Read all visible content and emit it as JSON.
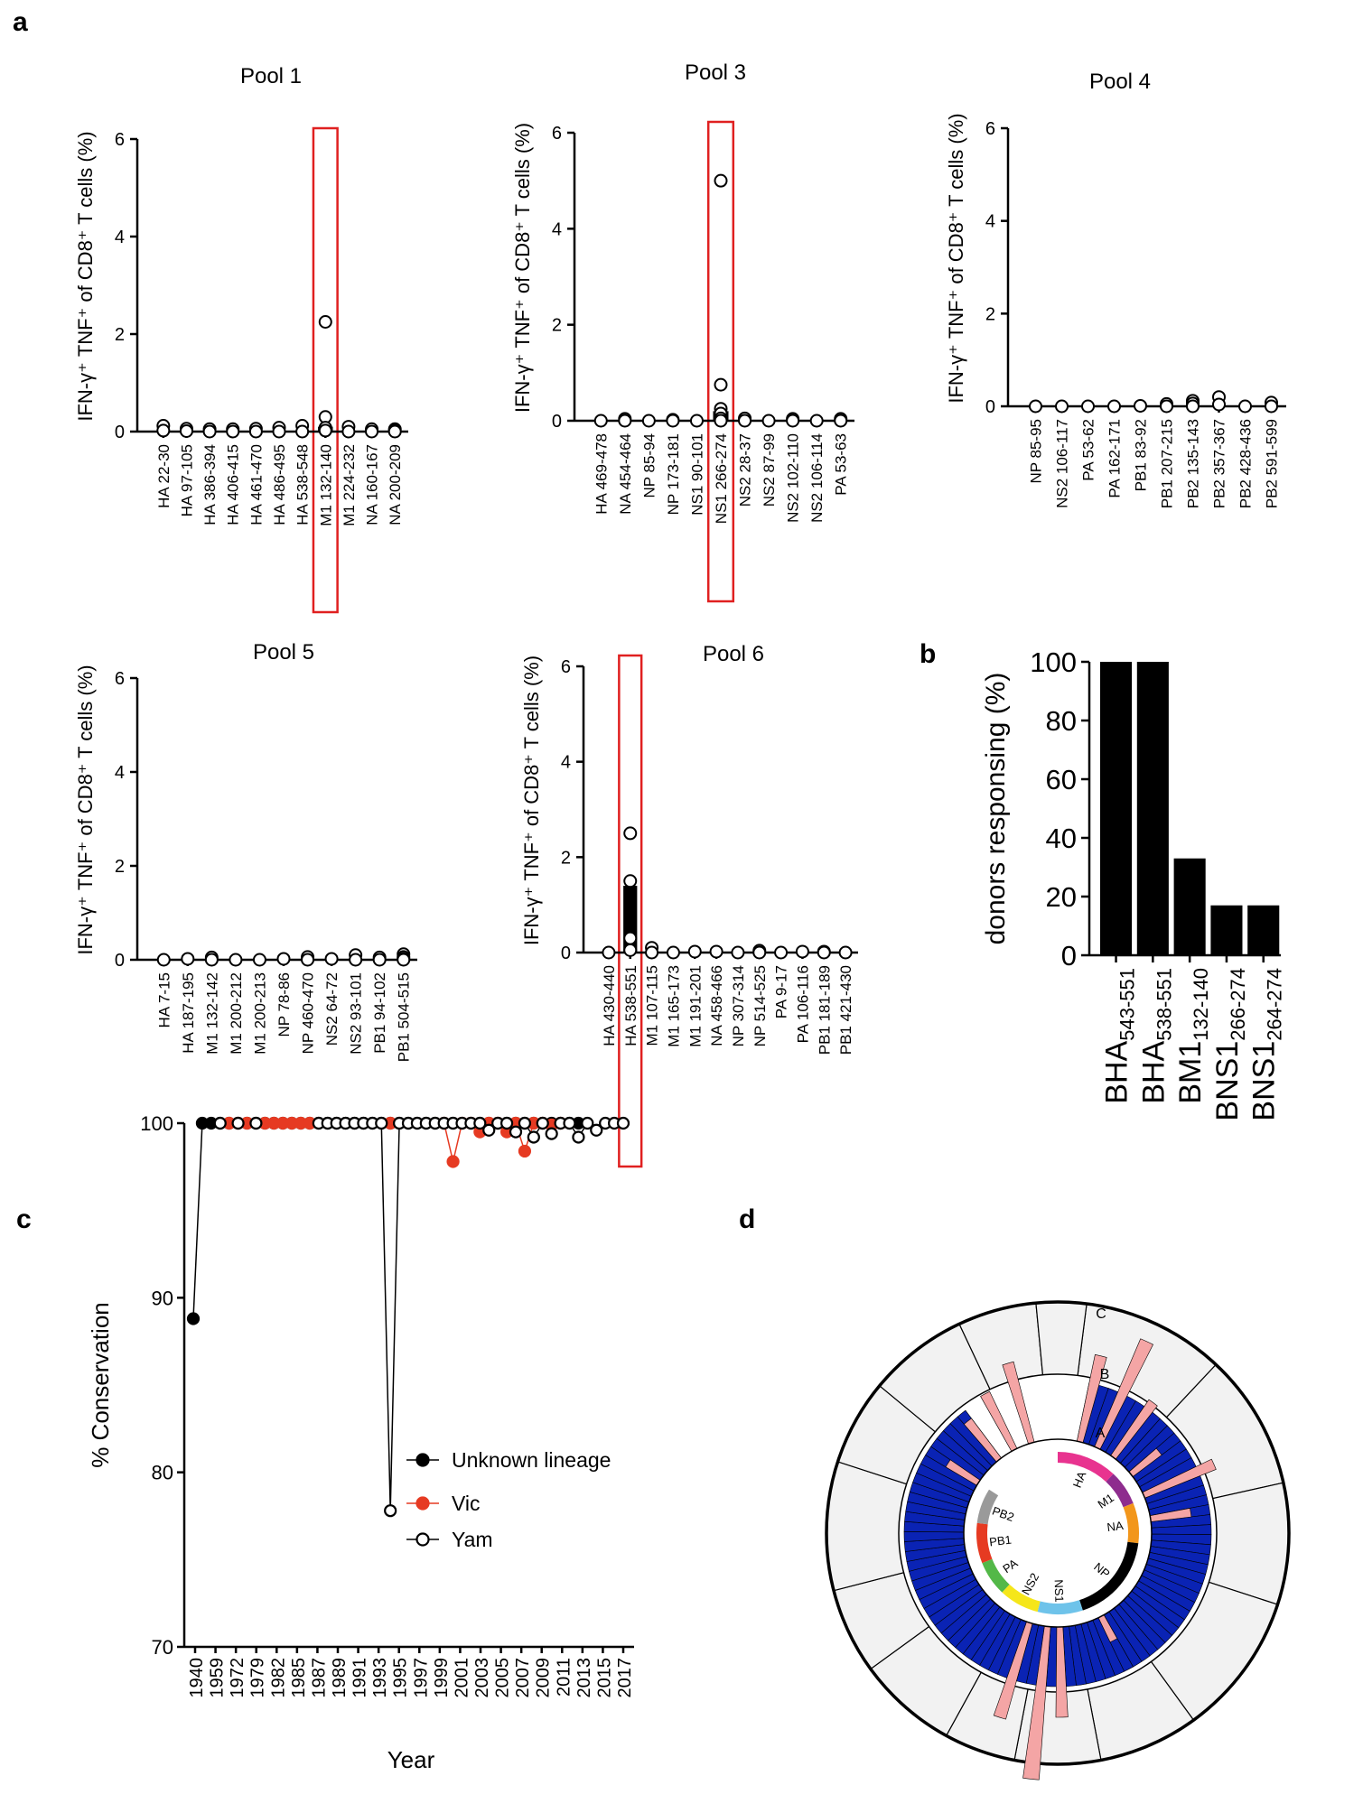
{
  "panel_labels": {
    "a": "a",
    "b": "b",
    "c": "c",
    "d": "d"
  },
  "chart_data": [
    {
      "id": "pool1",
      "type": "scatter",
      "title": "Pool 1",
      "ylabel": "IFN-γ⁺ TNF⁺ of CD8⁺ T cells (%)",
      "ylim": [
        0,
        6
      ],
      "yticks": [
        "0",
        "2",
        "4",
        "6"
      ],
      "categories": [
        "HA 22-30",
        "HA 97-105",
        "HA 386-394",
        "HA 406-415",
        "HA 461-470",
        "HA 486-495",
        "HA 538-548",
        "M1 132-140",
        "M1 224-232",
        "NA 160-167",
        "NA 200-209"
      ],
      "points": [
        [
          0,
          0.12
        ],
        [
          0,
          0.02
        ],
        [
          1,
          0.06
        ],
        [
          1,
          0.01
        ],
        [
          2,
          0.05
        ],
        [
          2,
          0
        ],
        [
          3,
          0.05
        ],
        [
          3,
          0
        ],
        [
          4,
          0.06
        ],
        [
          4,
          0
        ],
        [
          5,
          0.08
        ],
        [
          5,
          0
        ],
        [
          6,
          0.12
        ],
        [
          6,
          0
        ],
        [
          7,
          2.25
        ],
        [
          7,
          0.3
        ],
        [
          7,
          0.08
        ],
        [
          7,
          0.02
        ],
        [
          8,
          0.1
        ],
        [
          8,
          0
        ],
        [
          9,
          0.05
        ],
        [
          9,
          0
        ],
        [
          10,
          0.05
        ],
        [
          10,
          0.02
        ],
        [
          10,
          0
        ]
      ],
      "bars": [
        {
          "index": 7,
          "value": 0.1
        }
      ],
      "highlight": [
        7
      ]
    },
    {
      "id": "pool3",
      "type": "scatter",
      "title": "Pool 3",
      "ylabel": "IFN-γ⁺ TNF⁺ of CD8⁺ T cells (%)",
      "ylim": [
        0,
        6
      ],
      "yticks": [
        "0",
        "2",
        "4",
        "6"
      ],
      "categories": [
        "HA 469-478",
        "NA 454-464",
        "NP 85-94",
        "NP 173-181",
        "NS1 90-101",
        "NS1 266-274",
        "NS2 28-37",
        "NS2 87-99",
        "NS2 102-110",
        "NS2 106-114",
        "PA 53-63"
      ],
      "points": [
        [
          0,
          0
        ],
        [
          1,
          0.04
        ],
        [
          1,
          0
        ],
        [
          2,
          0
        ],
        [
          3,
          0.02
        ],
        [
          3,
          0
        ],
        [
          4,
          0
        ],
        [
          5,
          5.0
        ],
        [
          5,
          0.75
        ],
        [
          5,
          0.25
        ],
        [
          5,
          0.15
        ],
        [
          5,
          0.05
        ],
        [
          5,
          0
        ],
        [
          6,
          0.05
        ],
        [
          6,
          0
        ],
        [
          7,
          0
        ],
        [
          8,
          0.04
        ],
        [
          8,
          0
        ],
        [
          9,
          0
        ],
        [
          10,
          0.04
        ],
        [
          10,
          0
        ]
      ],
      "bars": [
        {
          "index": 5,
          "value": 0.2
        }
      ],
      "highlight": [
        5
      ]
    },
    {
      "id": "pool4",
      "type": "scatter",
      "title": "Pool 4",
      "ylabel": "IFN-γ⁺ TNF⁺ of CD8⁺ T cells (%)",
      "ylim": [
        0,
        6
      ],
      "yticks": [
        "0",
        "2",
        "4",
        "6"
      ],
      "categories": [
        "NP 85-95",
        "NS2 106-117",
        "PA 53-62",
        "PA 162-171",
        "PB1 83-92",
        "PB1 207-215",
        "PB2 135-143",
        "PB2 357-367",
        "PB2 428-436",
        "PB2 591-599"
      ],
      "points": [
        [
          0,
          0
        ],
        [
          1,
          0
        ],
        [
          2,
          0
        ],
        [
          3,
          0
        ],
        [
          4,
          0.01
        ],
        [
          5,
          0.05
        ],
        [
          5,
          0
        ],
        [
          6,
          0.12
        ],
        [
          6,
          0.06
        ],
        [
          6,
          0
        ],
        [
          7,
          0.2
        ],
        [
          7,
          0.04
        ],
        [
          8,
          0
        ],
        [
          9,
          0.08
        ],
        [
          9,
          0
        ]
      ],
      "bars": [],
      "highlight": []
    },
    {
      "id": "pool5",
      "type": "scatter",
      "title": "Pool 5",
      "ylabel": "IFN-γ⁺ TNF⁺ of CD8⁺ T cells (%)",
      "ylim": [
        0,
        6
      ],
      "yticks": [
        "0",
        "2",
        "4",
        "6"
      ],
      "categories": [
        "HA 7-15",
        "HA 187-195",
        "M1 132-142",
        "M1 200-212",
        "M1 200-213",
        "NP 78-86",
        "NP 460-470",
        "NS2 64-72",
        "NS2 93-101",
        "PB1 94-102",
        "PB1 504-515"
      ],
      "points": [
        [
          0,
          0
        ],
        [
          1,
          0.02
        ],
        [
          2,
          0.05
        ],
        [
          2,
          0
        ],
        [
          3,
          0
        ],
        [
          4,
          0
        ],
        [
          5,
          0.02
        ],
        [
          6,
          0.06
        ],
        [
          6,
          0
        ],
        [
          7,
          0.02
        ],
        [
          8,
          0.1
        ],
        [
          8,
          0
        ],
        [
          9,
          0.05
        ],
        [
          9,
          0
        ],
        [
          10,
          0.12
        ],
        [
          10,
          0.06
        ],
        [
          10,
          0.02
        ],
        [
          10,
          0
        ]
      ],
      "bars": [],
      "highlight": []
    },
    {
      "id": "pool6",
      "type": "scatter",
      "title": "Pool 6",
      "ylabel": "IFN-γ⁺ TNF⁺ of CD8⁺ T cells (%)",
      "ylim": [
        0,
        6
      ],
      "yticks": [
        "0",
        "2",
        "4",
        "6"
      ],
      "categories": [
        "HA 430-440",
        "HA 538-551",
        "M1 107-115",
        "M1 165-173",
        "M1 191-201",
        "NA 458-466",
        "NP 307-314",
        "NP 514-525",
        "PA 9-17",
        "PA 106-116",
        "PB1 181-189",
        "PB1 421-430"
      ],
      "points": [
        [
          0,
          0
        ],
        [
          1,
          2.5
        ],
        [
          1,
          1.5
        ],
        [
          1,
          0.3
        ],
        [
          1,
          0.05
        ],
        [
          2,
          0.1
        ],
        [
          2,
          0
        ],
        [
          3,
          0
        ],
        [
          4,
          0.02
        ],
        [
          5,
          0.02
        ],
        [
          6,
          0
        ],
        [
          7,
          0.04
        ],
        [
          7,
          0
        ],
        [
          8,
          0
        ],
        [
          9,
          0.02
        ],
        [
          10,
          0.02
        ],
        [
          10,
          0
        ],
        [
          11,
          0
        ]
      ],
      "bars": [
        {
          "index": 1,
          "value": 1.4
        }
      ],
      "highlight": [
        1
      ]
    },
    {
      "id": "panel-b",
      "type": "bar",
      "ylabel": "donors responsing (%)",
      "ylim": [
        0,
        100
      ],
      "yticks": [
        "0",
        "20",
        "40",
        "60",
        "80",
        "100"
      ],
      "categories": [
        {
          "main": "BHA",
          "sub": "543-551"
        },
        {
          "main": "BHA",
          "sub": "538-551"
        },
        {
          "main": "BM1",
          "sub": "132-140"
        },
        {
          "main": "BNS1",
          "sub": "266-274"
        },
        {
          "main": "BNS1",
          "sub": "264-274"
        }
      ],
      "values": [
        100,
        100,
        33,
        17,
        17
      ]
    },
    {
      "id": "panel-c",
      "type": "line",
      "ylabel": "% Conservation",
      "xlabel": "Year",
      "ylim": [
        70,
        100
      ],
      "yticks": [
        "70",
        "80",
        "90",
        "100"
      ],
      "xticks": [
        "1940",
        "1959",
        "1972",
        "1979",
        "1982",
        "1985",
        "1987",
        "1989",
        "1991",
        "1993",
        "1995",
        "1997",
        "1999",
        "2001",
        "2003",
        "2005",
        "2007",
        "2009",
        "2011",
        "2013",
        "2015",
        "2017"
      ],
      "legend": [
        {
          "name": "Unknown lineage",
          "color": "#000000",
          "marker": "filled"
        },
        {
          "name": "Vic",
          "color": "#e63a22",
          "marker": "filled"
        },
        {
          "name": "Yam",
          "color": "#000000",
          "marker": "open"
        }
      ],
      "series": [
        {
          "name": "Unknown lineage",
          "points": [
            [
              0,
              88.8
            ],
            [
              1,
              100
            ],
            [
              2,
              100
            ],
            [
              3,
              100
            ],
            [
              4,
              100
            ],
            [
              5,
              100
            ],
            [
              6,
              100
            ],
            [
              7,
              100
            ],
            [
              8,
              100
            ],
            [
              9,
              100
            ],
            [
              10,
              100
            ],
            [
              11,
              100
            ],
            [
              12,
              100
            ],
            [
              13,
              100
            ],
            [
              14,
              100
            ],
            [
              15,
              100
            ],
            [
              16,
              100
            ],
            [
              17,
              100
            ],
            [
              18,
              100
            ],
            [
              19,
              100
            ],
            [
              20,
              100
            ],
            [
              21,
              100
            ],
            [
              22,
              100
            ],
            [
              23,
              100
            ],
            [
              24,
              100
            ],
            [
              25,
              100
            ],
            [
              26,
              100
            ],
            [
              27,
              100
            ],
            [
              28,
              100
            ],
            [
              29,
              100
            ],
            [
              30,
              100
            ],
            [
              31,
              100
            ],
            [
              32,
              100
            ],
            [
              33,
              100
            ],
            [
              34,
              100
            ],
            [
              35,
              100
            ],
            [
              36,
              100
            ],
            [
              37,
              100
            ],
            [
              38,
              100
            ],
            [
              39,
              100
            ],
            [
              40,
              100
            ],
            [
              41,
              100
            ],
            [
              42,
              100
            ],
            [
              43,
              100
            ]
          ]
        },
        {
          "name": "Vic",
          "points": [
            [
              4,
              100
            ],
            [
              5,
              100
            ],
            [
              6,
              100
            ],
            [
              8,
              100
            ],
            [
              9,
              100
            ],
            [
              10,
              100
            ],
            [
              11,
              100
            ],
            [
              12,
              100
            ],
            [
              13,
              100
            ],
            [
              22,
              100
            ],
            [
              28,
              100
            ],
            [
              29,
              97.8
            ],
            [
              30,
              100
            ],
            [
              31,
              100
            ],
            [
              32,
              99.5
            ],
            [
              33,
              100
            ],
            [
              34,
              100
            ],
            [
              35,
              99.5
            ],
            [
              36,
              100
            ],
            [
              37,
              98.4
            ],
            [
              38,
              100
            ],
            [
              39,
              100
            ],
            [
              40,
              99.9
            ],
            [
              41,
              100
            ]
          ]
        },
        {
          "name": "Yam",
          "points": [
            [
              3,
              100
            ],
            [
              5,
              100
            ],
            [
              7,
              100
            ],
            [
              14,
              100
            ],
            [
              15,
              100
            ],
            [
              16,
              100
            ],
            [
              17,
              100
            ],
            [
              18,
              100
            ],
            [
              19,
              100
            ],
            [
              20,
              100
            ],
            [
              21,
              100
            ],
            [
              22,
              77.8
            ],
            [
              23,
              100
            ],
            [
              24,
              100
            ],
            [
              25,
              100
            ],
            [
              26,
              100
            ],
            [
              27,
              100
            ],
            [
              28,
              100
            ],
            [
              29,
              100
            ],
            [
              30,
              100
            ],
            [
              31,
              100
            ],
            [
              32,
              100
            ],
            [
              33,
              99.6
            ],
            [
              34,
              100
            ],
            [
              35,
              100
            ],
            [
              36,
              99.5
            ],
            [
              37,
              100
            ],
            [
              38,
              99.2
            ],
            [
              39,
              100
            ],
            [
              40,
              99.4
            ],
            [
              41,
              100
            ],
            [
              42,
              100
            ],
            [
              43,
              99.2
            ],
            [
              44,
              100
            ],
            [
              45,
              99.6
            ],
            [
              46,
              100
            ],
            [
              47,
              100
            ],
            [
              48,
              100
            ]
          ]
        }
      ],
      "n_points": 49
    },
    {
      "id": "panel-d",
      "type": "radial",
      "ring_labels": [
        "A",
        "B",
        "C"
      ],
      "segments": [
        {
          "name": "HA",
          "color": "#e8338f",
          "fraction": 0.12
        },
        {
          "name": "M1",
          "color": "#8e2c8e",
          "fraction": 0.07
        },
        {
          "name": "NA",
          "color": "#f2961b",
          "fraction": 0.08
        },
        {
          "name": "NP",
          "color": "#000000",
          "fraction": 0.18
        },
        {
          "name": "NS1",
          "color": "#6ec3ea",
          "fraction": 0.09
        },
        {
          "name": "NS2",
          "color": "#f5e61a",
          "fraction": 0.08
        },
        {
          "name": "PA",
          "color": "#53b848",
          "fraction": 0.07
        },
        {
          "name": "PB1",
          "color": "#e63a22",
          "fraction": 0.08
        },
        {
          "name": "PB2",
          "color": "#9a9a9a",
          "fraction": 0.07
        }
      ],
      "bar_colors": {
        "conserved": "#0a23b4",
        "variable": "#f4a5a5",
        "outer": "#f2f2f2"
      }
    }
  ]
}
